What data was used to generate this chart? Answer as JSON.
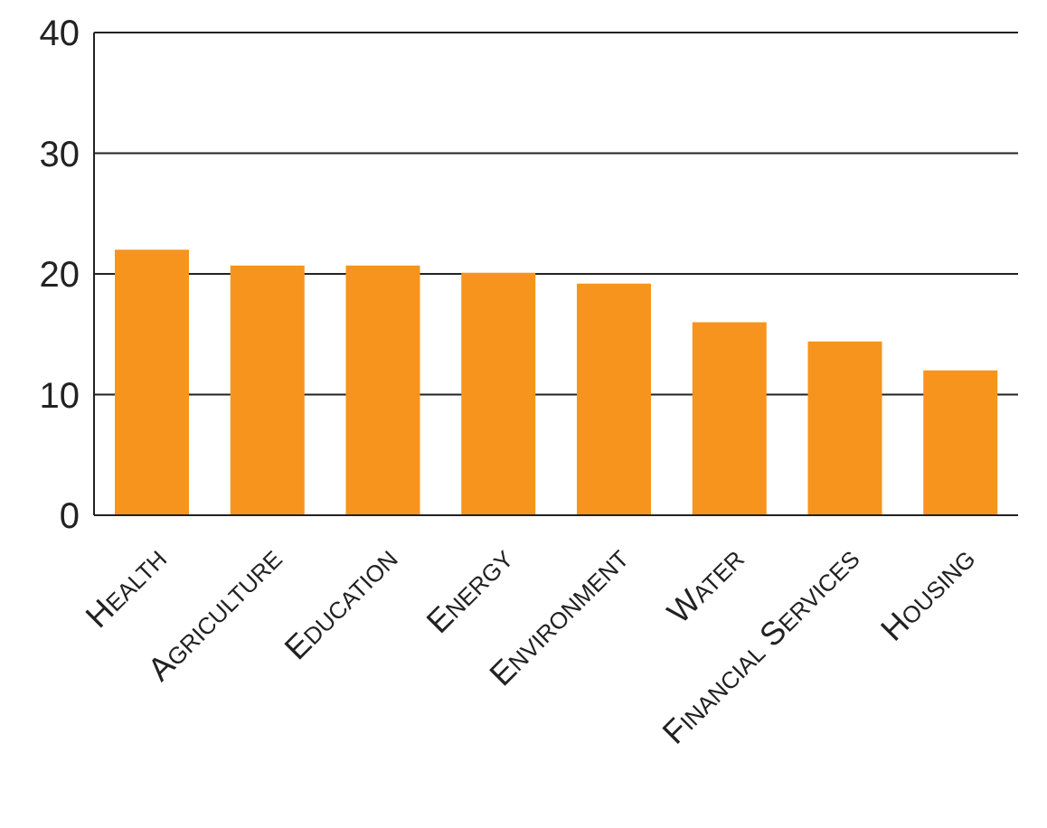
{
  "chart_data": {
    "type": "bar",
    "categories": [
      "Health",
      "Agriculture",
      "Education",
      "Energy",
      "Environment",
      "Water",
      "Financial Services",
      "Housing"
    ],
    "values": [
      22,
      20.7,
      20.7,
      20.1,
      19.2,
      16,
      14.4,
      12
    ],
    "color": "#f7941d",
    "ylim": [
      0,
      40
    ],
    "yticks": [
      0,
      10,
      20,
      30,
      40
    ],
    "grid": "y"
  }
}
